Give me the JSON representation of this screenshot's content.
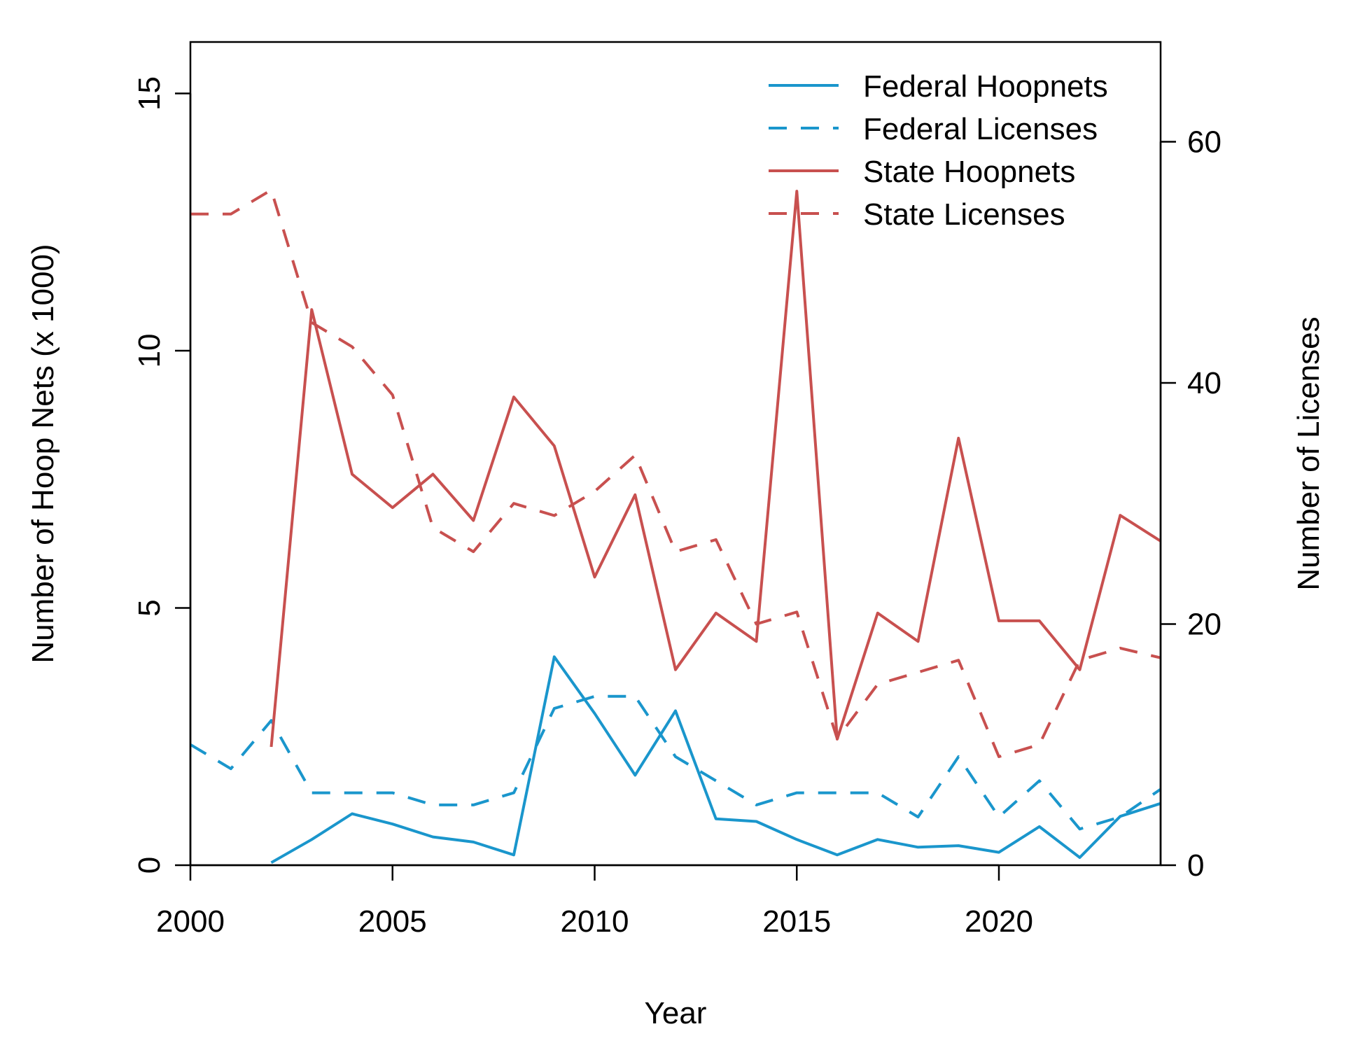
{
  "chart_data": {
    "type": "line",
    "title": "",
    "xlabel": "Year",
    "ylabel_left": "Number of Hoop Nets (x 1000)",
    "ylabel_right": "Number of Licenses",
    "xlim": [
      2000,
      2024
    ],
    "ylim_left": [
      0,
      16
    ],
    "ylim_right": [
      0,
      68.27
    ],
    "x_ticks": [
      2000,
      2005,
      2010,
      2015,
      2020
    ],
    "y_left_ticks": [
      0,
      5,
      10,
      15
    ],
    "y_right_ticks": [
      0,
      20,
      40,
      60
    ],
    "grid": false,
    "legend_position": "top-right",
    "series": [
      {
        "name": "Federal Hoopnets",
        "axis": "left",
        "style": "solid",
        "color": "#1a96cc",
        "x": [
          2002,
          2003,
          2004,
          2005,
          2006,
          2007,
          2008,
          2009,
          2010,
          2011,
          2012,
          2013,
          2014,
          2015,
          2016,
          2017,
          2018,
          2019,
          2020,
          2021,
          2022,
          2023,
          2024
        ],
        "y": [
          0.05,
          0.5,
          1.0,
          0.8,
          0.55,
          0.45,
          0.2,
          4.05,
          2.95,
          1.75,
          3.0,
          0.9,
          0.85,
          0.5,
          0.2,
          0.5,
          0.35,
          0.38,
          0.25,
          0.75,
          0.15,
          0.95,
          1.2
        ]
      },
      {
        "name": "Federal Licenses",
        "axis": "right",
        "style": "dashed",
        "color": "#1a96cc",
        "x": [
          2000,
          2001,
          2002,
          2003,
          2004,
          2005,
          2006,
          2007,
          2008,
          2009,
          2010,
          2011,
          2012,
          2013,
          2014,
          2015,
          2016,
          2017,
          2018,
          2019,
          2020,
          2021,
          2022,
          2023,
          2024
        ],
        "y": [
          10,
          8,
          12,
          6,
          6,
          6,
          5,
          5,
          6,
          13,
          14,
          14,
          9,
          7,
          5,
          6,
          6,
          6,
          4,
          9,
          4,
          7,
          3,
          4,
          6.3
        ]
      },
      {
        "name": "State Hoopnets",
        "axis": "left",
        "style": "solid",
        "color": "#c8504f",
        "x": [
          2002,
          2003,
          2004,
          2005,
          2006,
          2007,
          2008,
          2009,
          2010,
          2011,
          2012,
          2013,
          2014,
          2015,
          2016,
          2017,
          2018,
          2019,
          2020,
          2021,
          2022,
          2023,
          2024
        ],
        "y": [
          2.3,
          10.8,
          7.6,
          6.95,
          7.6,
          6.7,
          9.1,
          8.15,
          5.6,
          7.2,
          3.8,
          4.9,
          4.35,
          13.1,
          2.45,
          4.9,
          4.35,
          8.3,
          4.75,
          4.75,
          3.8,
          6.8,
          6.3
        ]
      },
      {
        "name": "State Licenses",
        "axis": "right",
        "style": "dashed",
        "color": "#c8504f",
        "x": [
          2000,
          2001,
          2002,
          2003,
          2004,
          2005,
          2006,
          2007,
          2008,
          2009,
          2010,
          2011,
          2012,
          2013,
          2014,
          2015,
          2016,
          2017,
          2018,
          2019,
          2020,
          2021,
          2022,
          2023,
          2024
        ],
        "y": [
          54,
          54,
          56,
          45,
          43,
          39,
          28,
          26,
          30,
          29,
          31,
          34,
          26,
          27,
          20,
          21,
          10.5,
          15,
          16,
          17,
          9,
          10,
          17,
          18,
          17.2
        ]
      }
    ]
  }
}
